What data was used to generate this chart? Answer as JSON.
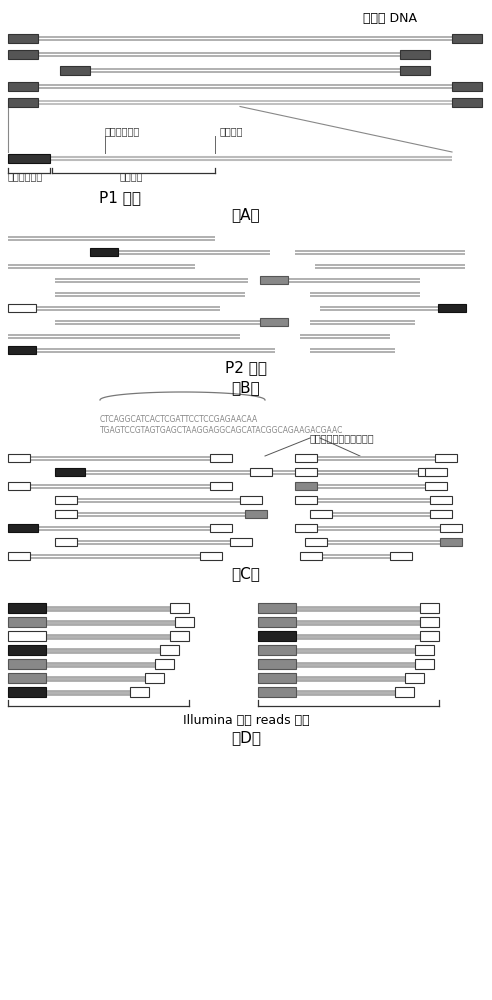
{
  "bg_color": "#ffffff",
  "text_color": "#000000",
  "genomic_dna": "基因组 DNA",
  "seq_primer_site": "测序引物位点",
  "enzyme_site": "酶切位点",
  "amp_primer_site": "扩增引物位点",
  "sample_barcode": "样品标签",
  "rev_comp_amp": "反向互补的扩增引物位点",
  "seq_line1": "CTCAGGCATCACTCGATTCCTCCGAGAACAA",
  "seq_line2": "TGAGTCCGTAGTGAGCTAAGGAGGCAGCATACGGCAGAAGACGAAC",
  "p1_label": "P1 接头",
  "p2_label": "P2 接头",
  "illumina_reads": "Illumina 测序 reads 长度",
  "label_A": "（A）",
  "label_B": "（B）",
  "label_C": "（C）",
  "label_D": "（D）"
}
